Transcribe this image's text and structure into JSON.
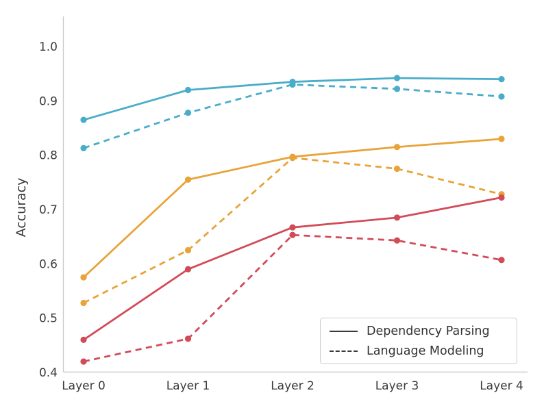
{
  "chart_data": {
    "type": "line",
    "title": "",
    "xlabel": "",
    "ylabel": "Accuracy",
    "categories": [
      "Layer 0",
      "Layer 1",
      "Layer 2",
      "Layer 3",
      "Layer 4"
    ],
    "ylim": [
      0.4,
      1.0
    ],
    "yticks": [
      0.4,
      0.5,
      0.6,
      0.7,
      0.8,
      0.9,
      1.0
    ],
    "ytick_labels": [
      "0.4",
      "0.5",
      "0.6",
      "0.7",
      "0.8",
      "0.9",
      "1.0"
    ],
    "grid": false,
    "legend": {
      "position": "lower right",
      "entries": [
        {
          "label": "Dependency Parsing",
          "style": "solid"
        },
        {
          "label": "Language Modeling",
          "style": "dashed"
        }
      ]
    },
    "series": [
      {
        "name": "blue-dependency-parsing",
        "task": "Dependency Parsing",
        "style": "solid",
        "color": "#49ADC9",
        "values": [
          0.865,
          0.92,
          0.935,
          0.942,
          0.94
        ]
      },
      {
        "name": "blue-language-modeling",
        "task": "Language Modeling",
        "style": "dashed",
        "color": "#49ADC9",
        "values": [
          0.813,
          0.878,
          0.93,
          0.922,
          0.908
        ]
      },
      {
        "name": "orange-dependency-parsing",
        "task": "Dependency Parsing",
        "style": "solid",
        "color": "#E8A339",
        "values": [
          0.575,
          0.755,
          0.797,
          0.815,
          0.83
        ]
      },
      {
        "name": "orange-language-modeling",
        "task": "Language Modeling",
        "style": "dashed",
        "color": "#E8A339",
        "values": [
          0.528,
          0.625,
          0.795,
          0.775,
          0.728
        ]
      },
      {
        "name": "red-dependency-parsing",
        "task": "Dependency Parsing",
        "style": "solid",
        "color": "#D24B58",
        "values": [
          0.46,
          0.59,
          0.667,
          0.685,
          0.722
        ]
      },
      {
        "name": "red-language-modeling",
        "task": "Language Modeling",
        "style": "dashed",
        "color": "#D24B58",
        "values": [
          0.42,
          0.462,
          0.653,
          0.643,
          0.607
        ]
      }
    ],
    "colors": {
      "spine": "#cccccc",
      "tick_text": "#3b3b3b",
      "legend_line": "#3a3a3a",
      "background": "#ffffff"
    }
  }
}
